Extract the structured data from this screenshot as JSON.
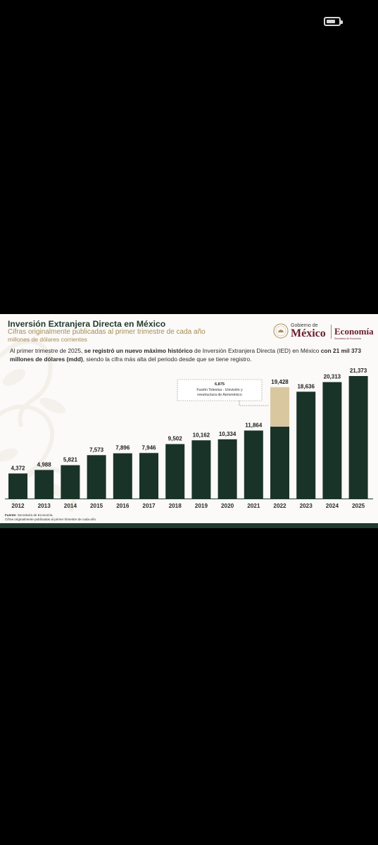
{
  "header": {
    "title": "Inversión Extranjera Directa en México",
    "subtitle": "Cifras originalmente publicadas al primer trimestre de cada año",
    "units": "millones de dólares corrientes"
  },
  "logos": {
    "gobierno_small": "Gobierno de",
    "gobierno_big": "México",
    "economia": "Economía",
    "economia_small": "Secretaría de Economía"
  },
  "description": {
    "part1": "Al primer trimestre de 2025, ",
    "bold1": "se registró un nuevo máximo histórico",
    "part2": " de Inversión Extranjera Directa (IED) en México ",
    "bold2": "con 21 mil 373 millones de dólares (mdd)",
    "part3": ", siendo la cifra más alta del periodo desde que se tiene registro."
  },
  "chart_data": {
    "type": "bar",
    "categories": [
      "2012",
      "2013",
      "2014",
      "2015",
      "2016",
      "2017",
      "2018",
      "2019",
      "2020",
      "2021",
      "2022",
      "2023",
      "2024",
      "2025"
    ],
    "values": [
      4372,
      4988,
      5821,
      7573,
      7896,
      7946,
      9502,
      10162,
      10334,
      11864,
      19428,
      18636,
      20313,
      21373
    ],
    "labels": [
      "4,372",
      "4,988",
      "5,821",
      "7,573",
      "7,896",
      "7,946",
      "9,502",
      "10,162",
      "10,334",
      "11,864",
      "19,428",
      "18,636",
      "20,313",
      "21,373"
    ],
    "stacked_segment": {
      "category": "2022",
      "value": 6875,
      "label": "6,875",
      "annotation": [
        "Fusión Televisa - Univisión y",
        "reestructura de Aeroméxico"
      ]
    },
    "title": "",
    "xlabel": "",
    "ylabel": "",
    "colors": {
      "bar": "#1a3329",
      "segment": "#d9c7a0",
      "axis": "#1f3a2e"
    }
  },
  "footer": {
    "source_label": "Fuente:",
    "source_text": " Secretaría de Economía.",
    "note": "Cifras originalmente publicadas al primer trimestre de cada año."
  },
  "status": {
    "battery_level": 0.7
  }
}
